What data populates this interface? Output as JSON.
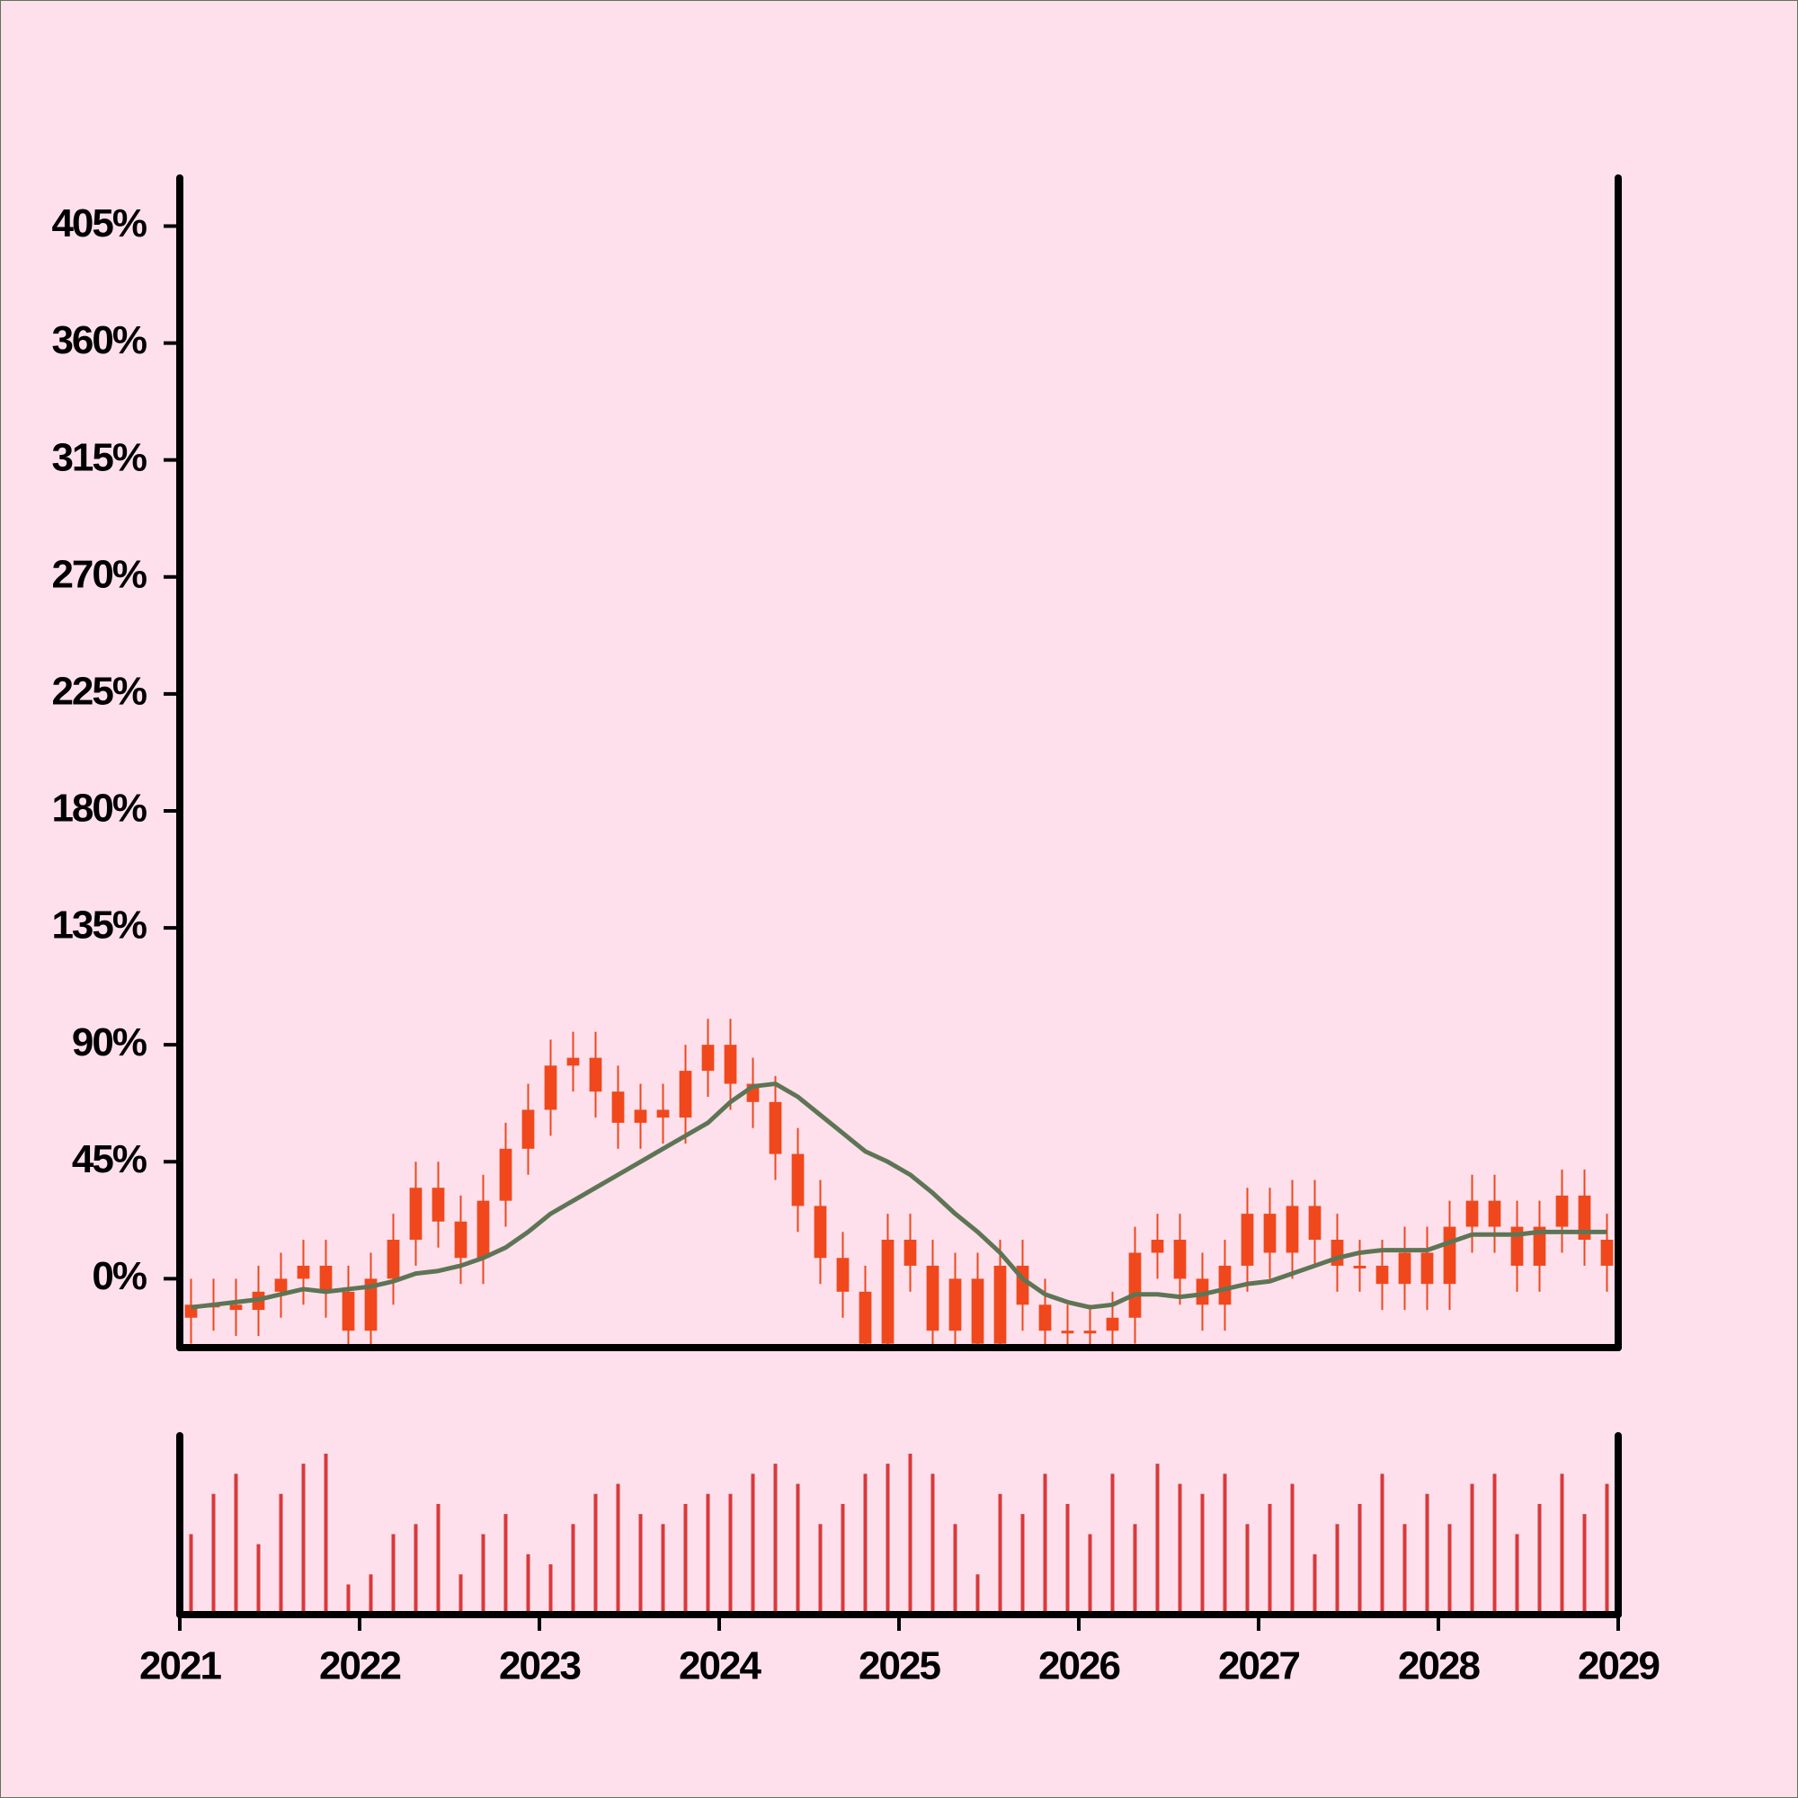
{
  "chart_data": {
    "type": "candlestick",
    "x": [
      2021.0625,
      2021.1875,
      2021.3125,
      2021.4375,
      2021.5625,
      2021.6875,
      2021.8125,
      2021.9375,
      2022.0625,
      2022.1875,
      2022.3125,
      2022.4375,
      2022.5625,
      2022.6875,
      2022.8125,
      2022.9375,
      2023.0625,
      2023.1875,
      2023.3125,
      2023.4375,
      2023.5625,
      2023.6875,
      2023.8125,
      2023.9375,
      2024.0625,
      2024.1875,
      2024.3125,
      2024.4375,
      2024.5625,
      2024.6875,
      2024.8125,
      2024.9375,
      2025.0625,
      2025.1875,
      2025.3125,
      2025.4375,
      2025.5625,
      2025.6875,
      2025.8125,
      2025.9375,
      2026.0625,
      2026.1875,
      2026.3125,
      2026.4375,
      2026.5625,
      2026.6875,
      2026.8125,
      2026.9375,
      2027.0625,
      2027.1875,
      2027.3125,
      2027.4375,
      2027.5625,
      2027.6875,
      2027.8125,
      2027.9375,
      2028.0625,
      2028.1875,
      2028.3125,
      2028.4375,
      2028.5625,
      2028.6875,
      2028.8125,
      2028.9375
    ],
    "open": [
      -15,
      -10,
      -10,
      -12,
      -5,
      0,
      5,
      -5,
      -20,
      0,
      15,
      35,
      22,
      8,
      30,
      50,
      65,
      82,
      85,
      72,
      60,
      65,
      62,
      80,
      90,
      75,
      68,
      48,
      28,
      8,
      -5,
      -25,
      15,
      5,
      -20,
      0,
      -25,
      5,
      -10,
      -20,
      -20,
      -20,
      -15,
      10,
      15,
      0,
      -10,
      5,
      25,
      10,
      28,
      15,
      5,
      5,
      -2,
      10,
      -2,
      20,
      30,
      20,
      5,
      20,
      32,
      15
    ],
    "high": [
      0,
      0,
      0,
      5,
      10,
      15,
      15,
      5,
      10,
      25,
      45,
      45,
      32,
      40,
      60,
      75,
      92,
      95,
      95,
      82,
      75,
      75,
      90,
      100,
      100,
      85,
      78,
      58,
      38,
      18,
      5,
      25,
      25,
      15,
      10,
      10,
      15,
      15,
      0,
      -10,
      -10,
      -5,
      20,
      25,
      25,
      10,
      15,
      35,
      35,
      38,
      38,
      25,
      15,
      15,
      20,
      20,
      30,
      40,
      40,
      30,
      30,
      42,
      42,
      25
    ],
    "low": [
      -25,
      -20,
      -22,
      -22,
      -15,
      -10,
      -15,
      -30,
      -30,
      -10,
      5,
      12,
      -2,
      -2,
      20,
      40,
      55,
      72,
      62,
      50,
      50,
      52,
      52,
      70,
      65,
      58,
      38,
      18,
      -2,
      -15,
      -35,
      -35,
      -5,
      -30,
      -30,
      -35,
      -35,
      -20,
      -30,
      -30,
      -30,
      -30,
      -25,
      0,
      -10,
      -20,
      -20,
      -5,
      0,
      0,
      5,
      -5,
      -5,
      -12,
      -12,
      -12,
      -12,
      10,
      10,
      -5,
      -5,
      10,
      5,
      -5
    ],
    "close": [
      -10,
      -10,
      -12,
      -5,
      0,
      5,
      -5,
      -20,
      0,
      15,
      35,
      22,
      8,
      30,
      50,
      65,
      82,
      85,
      72,
      60,
      65,
      62,
      80,
      90,
      75,
      68,
      48,
      28,
      8,
      -5,
      -25,
      15,
      5,
      -20,
      0,
      -25,
      5,
      -10,
      -20,
      -20,
      -20,
      -15,
      10,
      15,
      0,
      -10,
      5,
      25,
      10,
      28,
      15,
      5,
      5,
      -2,
      10,
      -2,
      20,
      30,
      20,
      5,
      20,
      32,
      15,
      5
    ],
    "color": "#f0481c",
    "moving_average": {
      "color": "#5e7555",
      "values": [
        -11,
        -10,
        -9,
        -8,
        -6,
        -4,
        -5,
        -4,
        -3,
        -1,
        2,
        3,
        5,
        8,
        12,
        18,
        25,
        30,
        35,
        40,
        45,
        50,
        55,
        60,
        68,
        74,
        75,
        70,
        63,
        56,
        49,
        45,
        40,
        33,
        25,
        18,
        10,
        0,
        -6,
        -9,
        -11,
        -10,
        -6,
        -6,
        -7,
        -6,
        -4,
        -2,
        -1,
        2,
        5,
        8,
        10,
        11,
        11,
        11,
        14,
        17,
        17,
        17,
        18,
        18,
        18,
        18
      ]
    },
    "volume": {
      "color": "#d9393a",
      "values": [
        40,
        60,
        70,
        35,
        60,
        75,
        80,
        15,
        20,
        40,
        45,
        55,
        20,
        40,
        50,
        30,
        25,
        45,
        60,
        65,
        50,
        45,
        55,
        60,
        60,
        70,
        75,
        65,
        45,
        55,
        70,
        75,
        80,
        70,
        45,
        20,
        60,
        50,
        70,
        55,
        40,
        70,
        45,
        75,
        65,
        60,
        70,
        45,
        55,
        65,
        30,
        45,
        55,
        70,
        45,
        60,
        45,
        65,
        70,
        40,
        55,
        70,
        50,
        65
      ]
    },
    "xlim": [
      2021,
      2029
    ],
    "xticks": [
      2021,
      2022,
      2023,
      2024,
      2025,
      2026,
      2027,
      2028,
      2029
    ],
    "ylim": [
      -26.5,
      423.5
    ],
    "yticks": [
      {
        "value": 0,
        "label": "0%"
      },
      {
        "value": 45,
        "label": "45%"
      },
      {
        "value": 90,
        "label": "90%"
      },
      {
        "value": 135,
        "label": "135%"
      },
      {
        "value": 180,
        "label": "180%"
      },
      {
        "value": 225,
        "label": "225%"
      },
      {
        "value": 270,
        "label": "270%"
      },
      {
        "value": 315,
        "label": "315%"
      },
      {
        "value": 360,
        "label": "360%"
      },
      {
        "value": 405,
        "label": "405%"
      }
    ]
  }
}
